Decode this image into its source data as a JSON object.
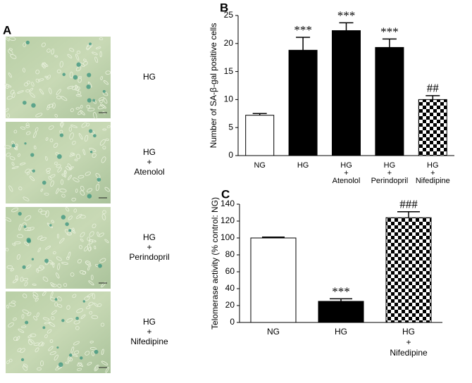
{
  "panel_a": {
    "label": "A",
    "images": [
      {
        "caption": [
          "HG"
        ]
      },
      {
        "caption": [
          "HG",
          "+",
          "Atenolol"
        ]
      },
      {
        "caption": [
          "HG",
          "+",
          "Perindopril"
        ]
      },
      {
        "caption": [
          "HG",
          "+",
          "Nifedipine"
        ]
      }
    ]
  },
  "chart_data": [
    {
      "type": "bar",
      "panel": "B",
      "ylabel": "Number of SA-β-gal positive cells",
      "categories": [
        [
          "NG"
        ],
        [
          "HG"
        ],
        [
          "HG",
          "+",
          "Atenolol"
        ],
        [
          "HG",
          "+",
          "Perindopril"
        ],
        [
          "HG",
          "+",
          "Nifedipine"
        ]
      ],
      "values": [
        7.2,
        18.8,
        22.3,
        19.3,
        10.0
      ],
      "errors": [
        0.3,
        2.3,
        1.4,
        1.5,
        0.7
      ],
      "annotations": [
        null,
        "***",
        "***",
        "***",
        "##"
      ],
      "fills": [
        "#ffffff",
        "#000000",
        "#000000",
        "#000000",
        "checker"
      ],
      "ylim": [
        0,
        25
      ],
      "yticks": [
        0,
        5,
        10,
        15,
        20,
        25
      ]
    },
    {
      "type": "bar",
      "panel": "C",
      "ylabel": "Telomerase activity (% control: NG)",
      "categories": [
        [
          "NG"
        ],
        [
          "HG"
        ],
        [
          "HG",
          "+",
          "Nifedipine"
        ]
      ],
      "values": [
        100,
        25,
        124
      ],
      "errors": [
        1,
        3,
        7
      ],
      "annotations": [
        null,
        "***",
        "###"
      ],
      "fills": [
        "#ffffff",
        "#000000",
        "checker"
      ],
      "ylim": [
        0,
        140
      ],
      "yticks": [
        0,
        20,
        40,
        60,
        80,
        100,
        120,
        140
      ]
    }
  ]
}
